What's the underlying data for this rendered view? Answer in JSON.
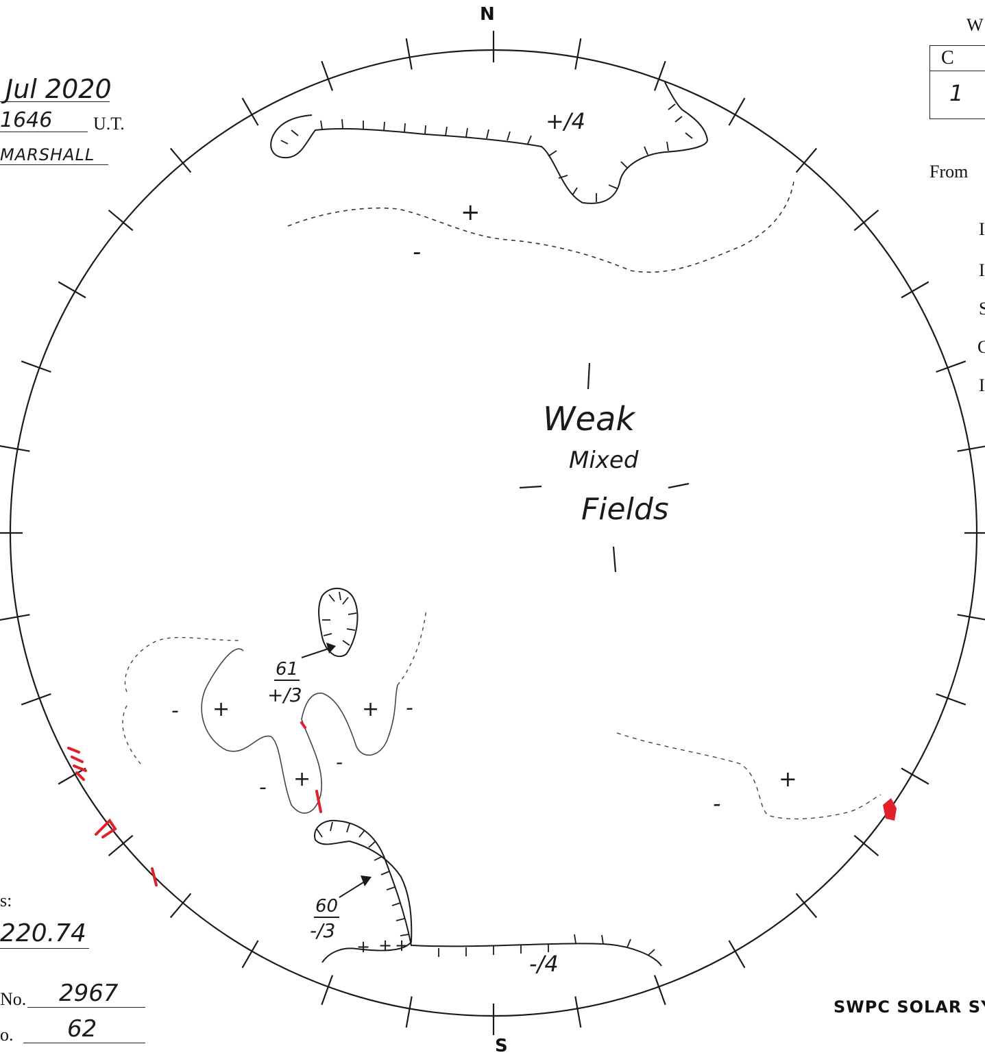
{
  "compass": {
    "north": "N",
    "south": "S"
  },
  "header": {
    "date_value": "Jul 2020",
    "time_value": "1646",
    "time_unit": "U.T.",
    "observer_value": "MARSHALL"
  },
  "table": {
    "prefix": "W",
    "col_header": "C",
    "cell_value": "1"
  },
  "from_label": "From",
  "right_letters": [
    "I",
    "I",
    "S",
    "C",
    "I"
  ],
  "footer": {
    "partial_label": "s:",
    "carrington_value": "220.74",
    "rotation_label": "No.",
    "rotation_value": "2967",
    "number_label": "o.",
    "number_value": "62",
    "title": "SWPC SOLAR SY"
  },
  "annotations": {
    "north_polarity": "+/4",
    "south_polarity": "-/4",
    "center_line1": "Weak",
    "center_line2": "Mixed",
    "center_line3": "Fields",
    "region_a_top": "61",
    "region_a_bottom": "+/3",
    "region_b_top": "60",
    "region_b_bottom": "-/3",
    "plus": "+",
    "minus": "-"
  },
  "colors": {
    "ink": "#1a1a1a",
    "red": "#e0202a"
  }
}
